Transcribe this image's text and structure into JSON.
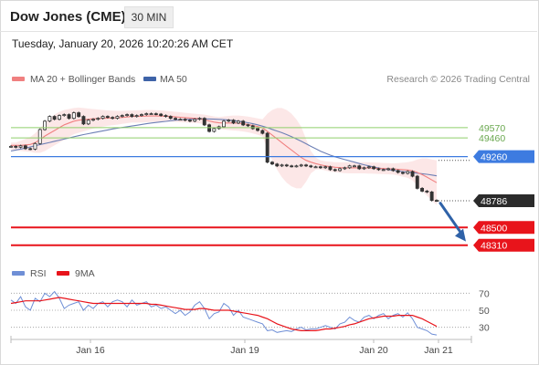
{
  "header": {
    "title": "Dow Jones (CME)",
    "timeframe": "30 MIN",
    "datetime": "Tuesday, January 20, 2026 10:20:26 AM CET"
  },
  "legend": {
    "ma20_label": "MA 20 + Bollinger Bands",
    "ma50_label": "MA 50",
    "credit": "Research © 2026 Trading Central",
    "rsi_label": "RSI",
    "rsi_ma_label": "9MA"
  },
  "colors": {
    "ma20": "#f08080",
    "band_fill": "#fbe3e3",
    "ma50": "#6c7fb5",
    "candle": "#333333",
    "resistance_green": "#8fcf6a",
    "pivot_blue": "#3d7be0",
    "support_red": "#e8141b",
    "current_bg": "#2b2b2b",
    "arrow": "#2f62a8",
    "rsi": "#6f8fd6",
    "rsi_ma": "#e8141b"
  },
  "chart_data": [
    {
      "type": "candlestick",
      "x_ticks": [
        "Jan 16",
        "Jan 19",
        "Jan 20",
        "Jan 21"
      ],
      "ylim": [
        48180,
        49980
      ],
      "last_price": 48786,
      "levels": [
        {
          "value": 49570,
          "label": "49570",
          "kind": "resistance"
        },
        {
          "value": 49460,
          "label": "49460",
          "kind": "resistance"
        },
        {
          "value": 49260,
          "label": "49260",
          "kind": "pivot"
        },
        {
          "value": 48786,
          "label": "48786",
          "kind": "current"
        },
        {
          "value": 48500,
          "label": "48500",
          "kind": "support"
        },
        {
          "value": 48310,
          "label": "48310",
          "kind": "support"
        }
      ],
      "projection": {
        "from": 48780,
        "to": 48330
      },
      "close": [
        49370,
        49360,
        49375,
        49345,
        49340,
        49400,
        49550,
        49640,
        49690,
        49660,
        49700,
        49710,
        49670,
        49730,
        49690,
        49610,
        49650,
        49660,
        49670,
        49690,
        49680,
        49670,
        49690,
        49700,
        49710,
        49690,
        49700,
        49710,
        49720,
        49720,
        49715,
        49700,
        49690,
        49670,
        49660,
        49660,
        49650,
        49640,
        49660,
        49670,
        49600,
        49530,
        49560,
        49580,
        49640,
        49650,
        49620,
        49640,
        49600,
        49590,
        49560,
        49540,
        49510,
        49200,
        49180,
        49160,
        49170,
        49160,
        49155,
        49160,
        49170,
        49160,
        49150,
        49150,
        49140,
        49150,
        49120,
        49110,
        49130,
        49140,
        49160,
        49160,
        49130,
        49140,
        49150,
        49130,
        49120,
        49120,
        49130,
        49110,
        49090,
        49080,
        49100,
        49050,
        48920,
        48890,
        48880,
        48790,
        48786
      ],
      "ma20": [
        49380,
        49380,
        49380,
        49385,
        49390,
        49410,
        49440,
        49480,
        49510,
        49540,
        49570,
        49600,
        49620,
        49640,
        49650,
        49655,
        49660,
        49665,
        49668,
        49670,
        49672,
        49674,
        49676,
        49680,
        49685,
        49690,
        49690,
        49692,
        49694,
        49695,
        49695,
        49694,
        49692,
        49690,
        49686,
        49682,
        49678,
        49674,
        49670,
        49666,
        49656,
        49642,
        49630,
        49622,
        49620,
        49620,
        49620,
        49618,
        49612,
        49604,
        49594,
        49582,
        49568,
        49530,
        49490,
        49450,
        49410,
        49370,
        49330,
        49290,
        49250,
        49220,
        49200,
        49185,
        49172,
        49160,
        49152,
        49146,
        49142,
        49140,
        49140,
        49140,
        49140,
        49140,
        49138,
        49136,
        49134,
        49132,
        49130,
        49128,
        49124,
        49120,
        49116,
        49108,
        49090,
        49066,
        49040,
        49010,
        48980
      ],
      "bb_upper": [
        49410,
        49410,
        49430,
        49450,
        49470,
        49510,
        49560,
        49620,
        49670,
        49710,
        49740,
        49760,
        49770,
        49780,
        49785,
        49780,
        49775,
        49770,
        49765,
        49760,
        49755,
        49752,
        49750,
        49750,
        49752,
        49754,
        49756,
        49758,
        49760,
        49760,
        49758,
        49755,
        49750,
        49745,
        49740,
        49735,
        49730,
        49725,
        49720,
        49715,
        49710,
        49700,
        49690,
        49685,
        49690,
        49695,
        49700,
        49700,
        49695,
        49688,
        49680,
        49670,
        49660,
        49720,
        49760,
        49780,
        49780,
        49760,
        49720,
        49660,
        49580,
        49450,
        49320,
        49250,
        49220,
        49210,
        49205,
        49200,
        49198,
        49198,
        49200,
        49200,
        49200,
        49200,
        49198,
        49196,
        49194,
        49192,
        49190,
        49188,
        49190,
        49195,
        49200,
        49210,
        49230,
        49240,
        49240,
        49230,
        49220
      ],
      "bb_lower": [
        49330,
        49330,
        49320,
        49315,
        49310,
        49300,
        49300,
        49320,
        49350,
        49380,
        49410,
        49440,
        49470,
        49500,
        49515,
        49530,
        49545,
        49560,
        49570,
        49580,
        49590,
        49596,
        49602,
        49610,
        49618,
        49626,
        49624,
        49626,
        49628,
        49630,
        49632,
        49633,
        49634,
        49635,
        49632,
        49629,
        49626,
        49623,
        49620,
        49617,
        49602,
        49584,
        49570,
        49559,
        49550,
        49545,
        49540,
        49536,
        49529,
        49520,
        49508,
        49494,
        49476,
        49340,
        49220,
        49120,
        49040,
        48980,
        48940,
        48920,
        48920,
        48990,
        49080,
        49120,
        49124,
        49110,
        49099,
        49092,
        49086,
        49082,
        49080,
        49080,
        49080,
        49080,
        49078,
        49076,
        49074,
        49072,
        49070,
        49068,
        49058,
        49045,
        49032,
        49006,
        48950,
        48892,
        48840,
        48790,
        48740
      ],
      "ma50": [
        49320,
        49330,
        49340,
        49352,
        49364,
        49376,
        49388,
        49400,
        49412,
        49424,
        49436,
        49448,
        49460,
        49472,
        49484,
        49496,
        49506,
        49516,
        49526,
        49536,
        49546,
        49556,
        49564,
        49572,
        49580,
        49588,
        49596,
        49604,
        49612,
        49620,
        49626,
        49632,
        49638,
        49644,
        49650,
        49654,
        49657,
        49660,
        49662,
        49664,
        49664,
        49663,
        49661,
        49659,
        49656,
        49652,
        49646,
        49640,
        49632,
        49623,
        49612,
        49600,
        49586,
        49570,
        49552,
        49534,
        49516,
        49496,
        49474,
        49450,
        49424,
        49398,
        49370,
        49344,
        49318,
        49296,
        49276,
        49258,
        49242,
        49228,
        49214,
        49200,
        49186,
        49172,
        49160,
        49148,
        49138,
        49128,
        49120,
        49112,
        49106,
        49100,
        49094,
        49088,
        49082,
        49076,
        49070,
        49062,
        49054
      ]
    },
    {
      "type": "line",
      "name": "RSI",
      "ylim": [
        20,
        80
      ],
      "y_ticks": [
        70,
        50,
        30
      ],
      "rsi": [
        62,
        58,
        66,
        54,
        50,
        64,
        60,
        70,
        66,
        72,
        64,
        52,
        56,
        58,
        60,
        50,
        56,
        52,
        58,
        60,
        54,
        60,
        62,
        60,
        54,
        62,
        56,
        58,
        60,
        54,
        56,
        52,
        54,
        50,
        46,
        50,
        44,
        48,
        56,
        60,
        52,
        40,
        46,
        48,
        58,
        54,
        44,
        50,
        42,
        40,
        38,
        36,
        34,
        26,
        27,
        24,
        25,
        26,
        25,
        28,
        30,
        27,
        28,
        28,
        30,
        32,
        30,
        28,
        34,
        36,
        42,
        38,
        36,
        42,
        44,
        40,
        44,
        46,
        40,
        44,
        46,
        42,
        47,
        40,
        30,
        28,
        26,
        22,
        21
      ],
      "rsi_ma": [
        58,
        59,
        60,
        61,
        61,
        61,
        61,
        62,
        63,
        64,
        65,
        64,
        63,
        62,
        61,
        60,
        59,
        58,
        58,
        58,
        58,
        58,
        58,
        58,
        58,
        58,
        58,
        58,
        58,
        57,
        57,
        56,
        55,
        54,
        53,
        52,
        51,
        51,
        51,
        52,
        52,
        51,
        50,
        50,
        50,
        50,
        49,
        48,
        47,
        46,
        45,
        44,
        42,
        40,
        37,
        34,
        32,
        30,
        28,
        27,
        26,
        26,
        26,
        26,
        27,
        28,
        28,
        29,
        30,
        31,
        33,
        34,
        36,
        38,
        40,
        41,
        42,
        43,
        43,
        43,
        44,
        44,
        44,
        44,
        42,
        40,
        37,
        34,
        31
      ]
    }
  ]
}
